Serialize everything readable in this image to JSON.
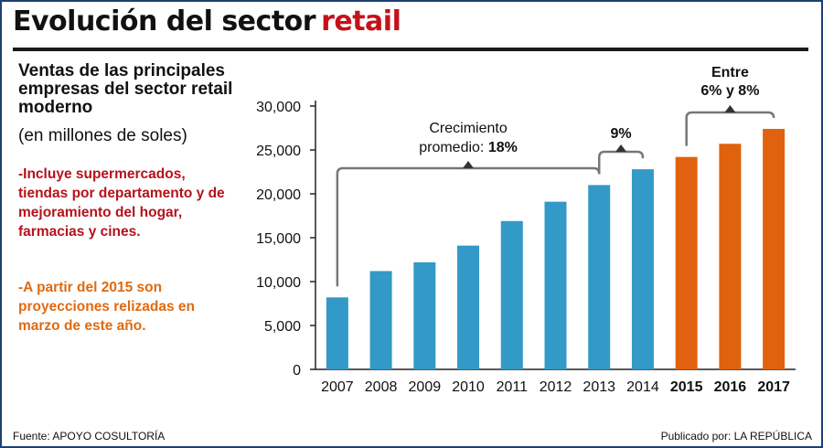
{
  "header": {
    "title": "Evolución del sector",
    "title_highlight": "retail"
  },
  "subtitle": "Ventas de las principales empresas del sector retail moderno",
  "units": "(en millones de soles)",
  "notes": {
    "includes": "-Incluye supermercados, tiendas por departamento y de mejoramiento del hogar, farmacias y cines.",
    "projections": "-A partir del 2015 son proyecciones relizadas en marzo de este año."
  },
  "footer": {
    "source": "Fuente: APOYO COSULTORÍA",
    "published": "Publicado por: LA REPÚBLICA"
  },
  "colors": {
    "actual": "#3399c7",
    "projected": "#e0620e",
    "title_accent": "#c3121b",
    "bracket": "#777777"
  },
  "chart_data": {
    "type": "bar",
    "categories": [
      "2007",
      "2008",
      "2009",
      "2010",
      "2011",
      "2012",
      "2013",
      "2014",
      "2015",
      "2016",
      "2017"
    ],
    "values": [
      8200,
      11200,
      12200,
      14100,
      16900,
      19100,
      21000,
      22800,
      24200,
      25700,
      27400
    ],
    "projected": [
      false,
      false,
      false,
      false,
      false,
      false,
      false,
      false,
      true,
      true,
      true
    ],
    "ylim": [
      0,
      30000
    ],
    "yticks": [
      0,
      5000,
      10000,
      15000,
      20000,
      25000,
      30000
    ],
    "ytick_labels": [
      "0",
      "5,000",
      "10,000",
      "15,000",
      "20,000",
      "25,000",
      "30,000"
    ],
    "annotations": [
      {
        "from": "2007",
        "to": "2013",
        "text": "Crecimiento",
        "text2": "promedio:",
        "bold": "18%"
      },
      {
        "from": "2013",
        "to": "2014",
        "text": "",
        "text2": "",
        "bold": "9%"
      },
      {
        "from": "2015",
        "to": "2017",
        "text": "",
        "text2": "",
        "bold": "Entre",
        "bold2": "6% y 8%"
      }
    ]
  }
}
